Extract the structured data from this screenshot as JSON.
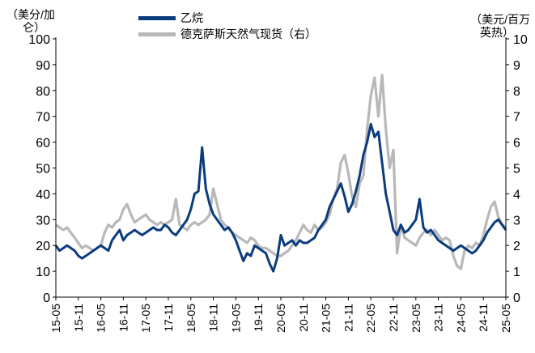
{
  "chart_data": {
    "type": "line",
    "left_axis_unit_line1": "（美分/加",
    "left_axis_unit_line2": "仑）",
    "right_axis_unit_line1": "（美元/百万",
    "right_axis_unit_line2": "英热）",
    "ylim_left": [
      0,
      100
    ],
    "ylim_right": [
      0,
      10
    ],
    "y_ticks_left": [
      "0",
      "10",
      "20",
      "30",
      "40",
      "50",
      "60",
      "70",
      "80",
      "90",
      "100"
    ],
    "y_ticks_right": [
      "0",
      "1",
      "2",
      "3",
      "4",
      "5",
      "6",
      "7",
      "8",
      "9",
      "10"
    ],
    "x_ticks": [
      "15-05",
      "15-11",
      "16-05",
      "16-11",
      "17-05",
      "17-11",
      "18-05",
      "18-11",
      "19-05",
      "19-11",
      "20-05",
      "20-11",
      "21-05",
      "21-11",
      "22-05",
      "22-11",
      "23-05",
      "23-11",
      "24-05",
      "24-11",
      "25-05"
    ],
    "x_start": "2015-05",
    "grid": false,
    "legend_position": "top",
    "series": [
      {
        "name": "乙烷",
        "axis": "left",
        "color": "#0b3c7d",
        "x": [
          "2015-05",
          "2015-06",
          "2015-07",
          "2015-08",
          "2015-09",
          "2015-10",
          "2015-11",
          "2015-12",
          "2016-01",
          "2016-02",
          "2016-03",
          "2016-04",
          "2016-05",
          "2016-06",
          "2016-07",
          "2016-08",
          "2016-09",
          "2016-10",
          "2016-11",
          "2016-12",
          "2017-01",
          "2017-02",
          "2017-03",
          "2017-04",
          "2017-05",
          "2017-06",
          "2017-07",
          "2017-08",
          "2017-09",
          "2017-10",
          "2017-11",
          "2017-12",
          "2018-01",
          "2018-02",
          "2018-03",
          "2018-04",
          "2018-05",
          "2018-06",
          "2018-07",
          "2018-08",
          "2018-09",
          "2018-10",
          "2018-11",
          "2018-12",
          "2019-01",
          "2019-02",
          "2019-03",
          "2019-04",
          "2019-05",
          "2019-06",
          "2019-07",
          "2019-08",
          "2019-09",
          "2019-10",
          "2019-11",
          "2019-12",
          "2020-01",
          "2020-02",
          "2020-03",
          "2020-04",
          "2020-05",
          "2020-06",
          "2020-07",
          "2020-08",
          "2020-09",
          "2020-10",
          "2020-11",
          "2020-12",
          "2021-01",
          "2021-02",
          "2021-03",
          "2021-04",
          "2021-05",
          "2021-06",
          "2021-07",
          "2021-08",
          "2021-09",
          "2021-10",
          "2021-11",
          "2021-12",
          "2022-01",
          "2022-02",
          "2022-03",
          "2022-04",
          "2022-05",
          "2022-06",
          "2022-07",
          "2022-08",
          "2022-09",
          "2022-10",
          "2022-11",
          "2022-12",
          "2023-01",
          "2023-02",
          "2023-03",
          "2023-04",
          "2023-05",
          "2023-06",
          "2023-07",
          "2023-08",
          "2023-09",
          "2023-10",
          "2023-11",
          "2023-12",
          "2024-01",
          "2024-02",
          "2024-03",
          "2024-04",
          "2024-05",
          "2024-06",
          "2024-07",
          "2024-08",
          "2024-09",
          "2024-10",
          "2024-11",
          "2024-12",
          "2025-01",
          "2025-02",
          "2025-03",
          "2025-04",
          "2025-05"
        ],
        "values": [
          20,
          18,
          19,
          20,
          19,
          18,
          16,
          15,
          16,
          17,
          18,
          19,
          20,
          19,
          18,
          22,
          24,
          26,
          22,
          24,
          25,
          26,
          25,
          24,
          25,
          26,
          27,
          26,
          26,
          28,
          27,
          25,
          24,
          26,
          28,
          30,
          34,
          40,
          41,
          58,
          42,
          36,
          32,
          30,
          28,
          26,
          27,
          25,
          22,
          18,
          14,
          17,
          16,
          20,
          19,
          18,
          17,
          13,
          10,
          15,
          24,
          20,
          21,
          22,
          20,
          22,
          21,
          21,
          22,
          23,
          26,
          28,
          30,
          35,
          38,
          41,
          44,
          39,
          33,
          36,
          41,
          47,
          55,
          60,
          67,
          62,
          64,
          52,
          40,
          33,
          26,
          24,
          28,
          25,
          26,
          28,
          30,
          38,
          27,
          25,
          26,
          24,
          22,
          21,
          20,
          19,
          18,
          19,
          20,
          19,
          18,
          17,
          18,
          20,
          22,
          25,
          27,
          29,
          30,
          28,
          26
        ],
        "values_right": null
      },
      {
        "name": "德克萨斯天然气现货（右）",
        "axis": "right",
        "color": "#b8b8b8",
        "x": [
          "2015-05",
          "2015-06",
          "2015-07",
          "2015-08",
          "2015-09",
          "2015-10",
          "2015-11",
          "2015-12",
          "2016-01",
          "2016-02",
          "2016-03",
          "2016-04",
          "2016-05",
          "2016-06",
          "2016-07",
          "2016-08",
          "2016-09",
          "2016-10",
          "2016-11",
          "2016-12",
          "2017-01",
          "2017-02",
          "2017-03",
          "2017-04",
          "2017-05",
          "2017-06",
          "2017-07",
          "2017-08",
          "2017-09",
          "2017-10",
          "2017-11",
          "2017-12",
          "2018-01",
          "2018-02",
          "2018-03",
          "2018-04",
          "2018-05",
          "2018-06",
          "2018-07",
          "2018-08",
          "2018-09",
          "2018-10",
          "2018-11",
          "2018-12",
          "2019-01",
          "2019-02",
          "2019-03",
          "2019-04",
          "2019-05",
          "2019-06",
          "2019-07",
          "2019-08",
          "2019-09",
          "2019-10",
          "2019-11",
          "2019-12",
          "2020-01",
          "2020-02",
          "2020-03",
          "2020-04",
          "2020-05",
          "2020-06",
          "2020-07",
          "2020-08",
          "2020-09",
          "2020-10",
          "2020-11",
          "2020-12",
          "2021-01",
          "2021-02",
          "2021-03",
          "2021-04",
          "2021-05",
          "2021-06",
          "2021-07",
          "2021-08",
          "2021-09",
          "2021-10",
          "2021-11",
          "2021-12",
          "2022-01",
          "2022-02",
          "2022-03",
          "2022-04",
          "2022-05",
          "2022-06",
          "2022-07",
          "2022-08",
          "2022-09",
          "2022-10",
          "2022-11",
          "2022-12",
          "2023-01",
          "2023-02",
          "2023-03",
          "2023-04",
          "2023-05",
          "2023-06",
          "2023-07",
          "2023-08",
          "2023-09",
          "2023-10",
          "2023-11",
          "2023-12",
          "2024-01",
          "2024-02",
          "2024-03",
          "2024-04",
          "2024-05",
          "2024-06",
          "2024-07",
          "2024-08",
          "2024-09",
          "2024-10",
          "2024-11",
          "2024-12",
          "2025-01",
          "2025-02",
          "2025-03",
          "2025-04",
          "2025-05"
        ],
        "values": [
          2.8,
          2.7,
          2.6,
          2.7,
          2.5,
          2.3,
          2.1,
          1.9,
          2.0,
          1.9,
          1.8,
          1.9,
          2.0,
          2.5,
          2.8,
          2.7,
          2.9,
          3.0,
          3.4,
          3.6,
          3.2,
          2.9,
          3.0,
          3.1,
          3.2,
          3.0,
          2.9,
          2.8,
          2.9,
          2.8,
          2.9,
          3.0,
          3.8,
          2.8,
          2.7,
          2.6,
          2.8,
          2.9,
          2.8,
          2.9,
          3.0,
          3.2,
          4.2,
          3.6,
          3.0,
          2.8,
          2.7,
          2.5,
          2.4,
          2.3,
          2.2,
          2.1,
          2.3,
          2.2,
          2.0,
          1.9,
          1.9,
          1.8,
          1.7,
          1.6,
          1.6,
          1.7,
          1.8,
          2.0,
          2.2,
          2.5,
          2.8,
          2.6,
          2.5,
          2.8,
          2.6,
          2.7,
          2.9,
          3.2,
          3.8,
          4.2,
          5.2,
          5.5,
          4.8,
          3.9,
          3.5,
          4.4,
          4.7,
          6.5,
          7.8,
          8.5,
          7.0,
          8.6,
          6.5,
          5.0,
          5.7,
          1.7,
          2.8,
          2.3,
          2.2,
          2.1,
          2.0,
          2.3,
          2.5,
          2.6,
          2.4,
          2.6,
          2.4,
          2.2,
          2.3,
          2.2,
          1.6,
          1.2,
          1.1,
          1.8,
          2.0,
          1.9,
          2.1,
          2.0,
          2.4,
          3.0,
          3.5,
          3.7,
          3.1,
          2.8,
          2.7
        ],
        "values_left": null
      }
    ]
  }
}
